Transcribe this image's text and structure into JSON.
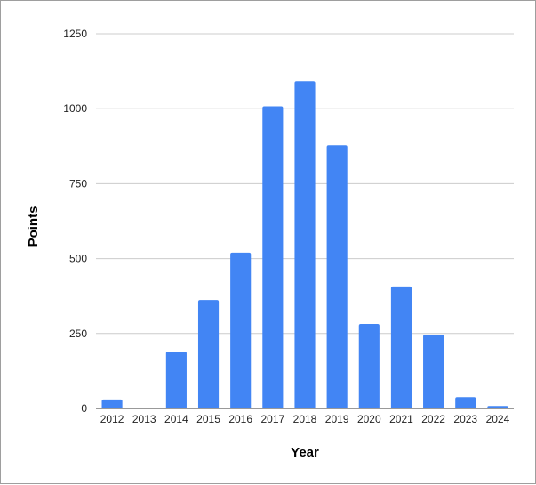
{
  "chart_data": {
    "type": "bar",
    "title": "",
    "xlabel": "Year",
    "ylabel": "Points",
    "categories": [
      "2012",
      "2013",
      "2014",
      "2015",
      "2016",
      "2017",
      "2018",
      "2019",
      "2020",
      "2021",
      "2022",
      "2023",
      "2024"
    ],
    "values": [
      30,
      0,
      190,
      362,
      520,
      1008,
      1092,
      878,
      282,
      407,
      246,
      38,
      8
    ],
    "ylim": [
      0,
      1250
    ],
    "yticks": [
      0,
      250,
      500,
      750,
      1000,
      1250
    ],
    "grid": true,
    "legend": "none",
    "bar_color": "#4285f4"
  }
}
